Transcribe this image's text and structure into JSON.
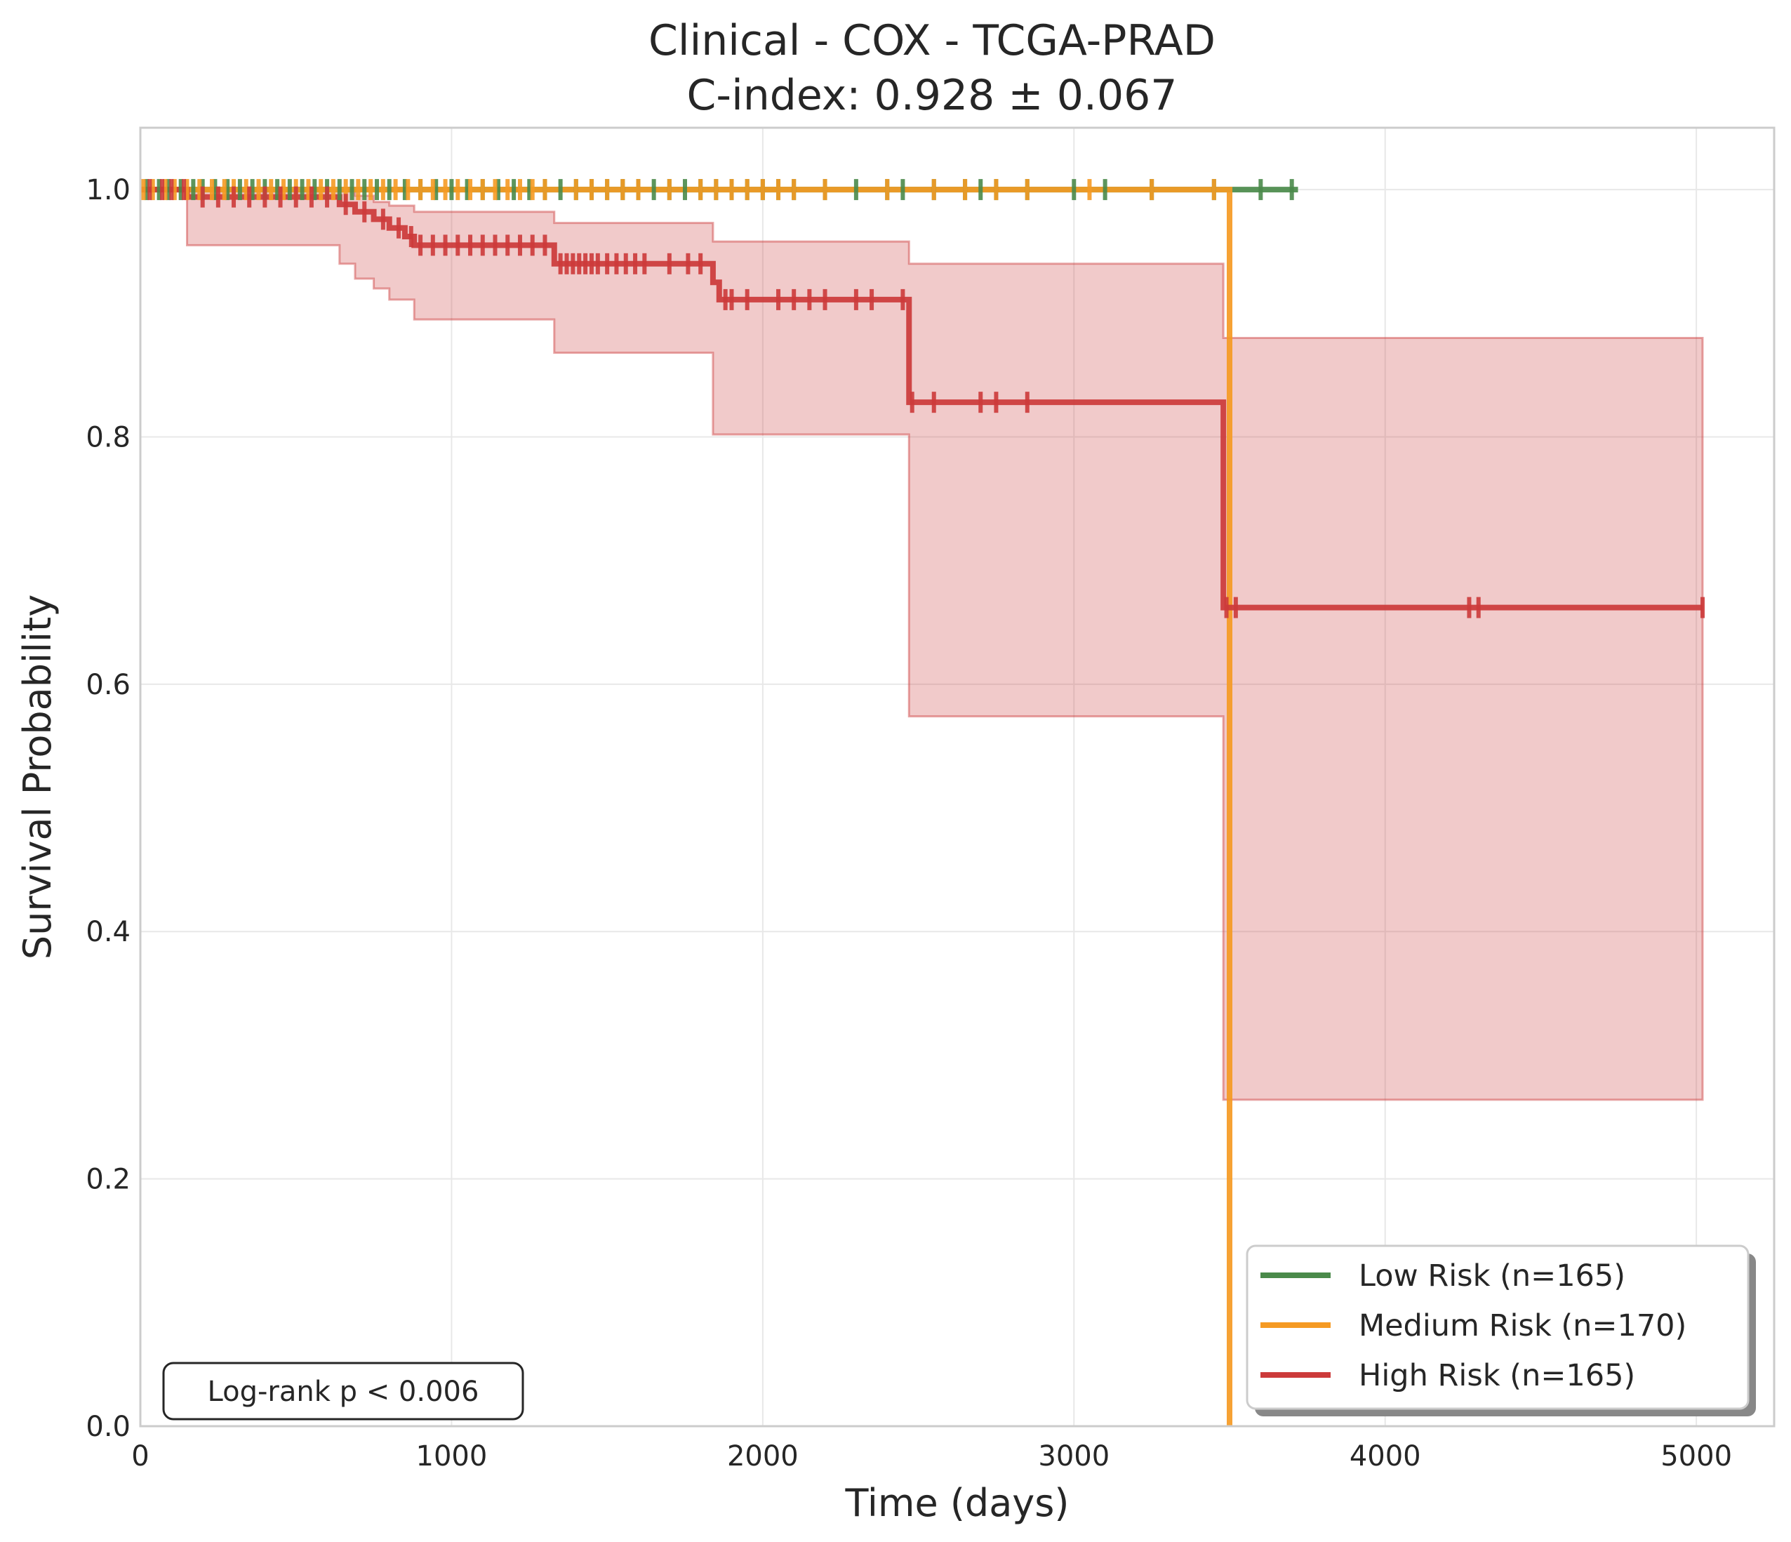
{
  "chart_data": {
    "type": "line",
    "title": "Clinical - COX - TCGA-PRAD",
    "subtitle": "C-index: 0.928 ± 0.067",
    "xlabel": "Time (days)",
    "ylabel": "Survival Probability",
    "xlim": [
      0,
      5250
    ],
    "ylim": [
      0,
      1.05
    ],
    "xticks": [
      "0",
      "1000",
      "2000",
      "3000",
      "4000",
      "5000"
    ],
    "yticks": [
      "0.0",
      "0.2",
      "0.4",
      "0.6",
      "0.8",
      "1.0"
    ],
    "grid": true,
    "legend_position": "bottom-right",
    "annotation": "Log-rank p < 0.006",
    "series": [
      {
        "name": "Low Risk (n=165)",
        "color": "#4a8a4a",
        "steps": [
          [
            0,
            1.0
          ],
          [
            3720,
            1.0
          ]
        ],
        "censor_times": [
          20,
          60,
          90,
          130,
          170,
          200,
          240,
          280,
          320,
          360,
          400,
          440,
          480,
          520,
          560,
          600,
          640,
          680,
          720,
          760,
          800,
          850,
          900,
          950,
          1000,
          1050,
          1100,
          1150,
          1200,
          1250,
          1300,
          1350,
          1400,
          1450,
          1500,
          1550,
          1600,
          1650,
          1700,
          1750,
          1800,
          1850,
          1900,
          1950,
          2000,
          2050,
          2100,
          2200,
          2300,
          2400,
          2450,
          2550,
          2650,
          2700,
          2750,
          2850,
          3000,
          3100,
          3250,
          3450,
          3600,
          3700
        ]
      },
      {
        "name": "Medium Risk (n=170)",
        "color": "#f59a23",
        "steps": [
          [
            0,
            1.0
          ],
          [
            3500,
            1.0
          ],
          [
            3500,
            0.0
          ]
        ],
        "censor_times": [
          10,
          40,
          80,
          110,
          150,
          190,
          230,
          270,
          300,
          340,
          380,
          420,
          460,
          500,
          540,
          580,
          620,
          660,
          700,
          740,
          780,
          820,
          860,
          900,
          940,
          980,
          1020,
          1060,
          1100,
          1140,
          1180,
          1220,
          1260,
          1300,
          1400,
          1450,
          1500,
          1550,
          1600,
          1700,
          1800,
          1850,
          1900,
          1950,
          2000,
          2050,
          2100,
          2200,
          2400,
          2550,
          2650,
          2750,
          2850,
          3050,
          3250,
          3450
        ]
      },
      {
        "name": "High Risk (n=165)",
        "color": "#cc3a3a",
        "steps": [
          [
            0,
            1.0
          ],
          [
            150,
            1.0
          ],
          [
            150,
            0.994
          ],
          [
            640,
            0.994
          ],
          [
            640,
            0.988
          ],
          [
            690,
            0.988
          ],
          [
            690,
            0.982
          ],
          [
            750,
            0.982
          ],
          [
            750,
            0.976
          ],
          [
            800,
            0.976
          ],
          [
            800,
            0.969
          ],
          [
            850,
            0.969
          ],
          [
            850,
            0.962
          ],
          [
            880,
            0.962
          ],
          [
            880,
            0.955
          ],
          [
            1330,
            0.955
          ],
          [
            1330,
            0.94
          ],
          [
            1840,
            0.94
          ],
          [
            1840,
            0.925
          ],
          [
            1860,
            0.925
          ],
          [
            1860,
            0.911
          ],
          [
            2470,
            0.911
          ],
          [
            2470,
            0.828
          ],
          [
            3480,
            0.828
          ],
          [
            3480,
            0.662
          ],
          [
            5020,
            0.662
          ]
        ],
        "ci_band": [
          [
            0,
            1.0,
            1.0
          ],
          [
            150,
            0.955,
            1.0
          ],
          [
            640,
            0.94,
            1.0
          ],
          [
            690,
            0.928,
            0.995
          ],
          [
            750,
            0.92,
            0.99
          ],
          [
            800,
            0.911,
            0.987
          ],
          [
            880,
            0.895,
            0.982
          ],
          [
            1330,
            0.868,
            0.973
          ],
          [
            1840,
            0.802,
            0.958
          ],
          [
            2470,
            0.574,
            0.94
          ],
          [
            3480,
            0.264,
            0.88
          ],
          [
            5020,
            0.264,
            0.88
          ]
        ],
        "censor_times": [
          30,
          70,
          100,
          140,
          200,
          250,
          300,
          350,
          400,
          450,
          500,
          550,
          600,
          660,
          720,
          780,
          830,
          870,
          900,
          940,
          980,
          1020,
          1060,
          1100,
          1140,
          1180,
          1220,
          1260,
          1300,
          1350,
          1370,
          1390,
          1410,
          1430,
          1450,
          1470,
          1500,
          1530,
          1560,
          1590,
          1620,
          1700,
          1760,
          1800,
          1880,
          1900,
          1950,
          2050,
          2100,
          2150,
          2200,
          2300,
          2350,
          2450,
          2480,
          2550,
          2700,
          2750,
          2850,
          3490,
          3520,
          4270,
          4300,
          5020
        ]
      }
    ]
  }
}
